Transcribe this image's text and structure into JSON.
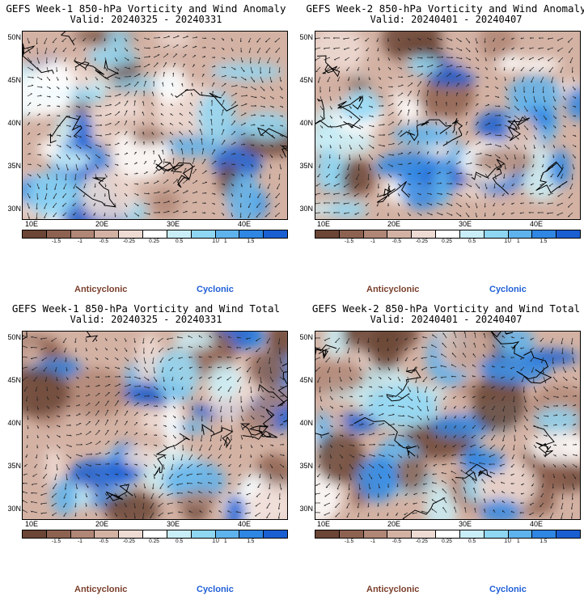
{
  "colors": {
    "anticyclonic_text": "#7a3e2b",
    "cyclonic_text": "#1f5fd6",
    "scale": [
      "#6b4535",
      "#8e6250",
      "#b08676",
      "#d3b2a4",
      "#eedbd3",
      "#ffffff",
      "#c9eef7",
      "#8fd6f3",
      "#5fb3ec",
      "#2f86e3",
      "#1a5fd2"
    ]
  },
  "legend": {
    "anticyclonic": "Anticyclonic",
    "cyclonic": "Cyclonic",
    "ticks": [
      "-1.5",
      "-1",
      "-0.5",
      "-0.25",
      "0.25",
      "0.5",
      "1",
      "1.5"
    ],
    "unit": "10"
  },
  "axes": {
    "lat": [
      "50N",
      "45N",
      "40N",
      "35N",
      "30N"
    ],
    "lon": [
      "10E",
      "20E",
      "30E",
      "40E"
    ]
  },
  "panels": [
    {
      "title": "GEFS Week-1 850-hPa Vorticity and Wind Anomaly",
      "valid": "Valid: 20240325 - 20240331"
    },
    {
      "title": "GEFS Week-2 850-hPa Vorticity and Wind Anomaly",
      "valid": "Valid: 20240401 - 20240407"
    },
    {
      "title": "GEFS Week-1 850-hPa Vorticity and Wind Total",
      "valid": "Valid: 20240325 - 20240331"
    },
    {
      "title": "GEFS Week-2 850-hPa Vorticity and Wind Total",
      "valid": "Valid: 20240401 - 20240407"
    }
  ]
}
